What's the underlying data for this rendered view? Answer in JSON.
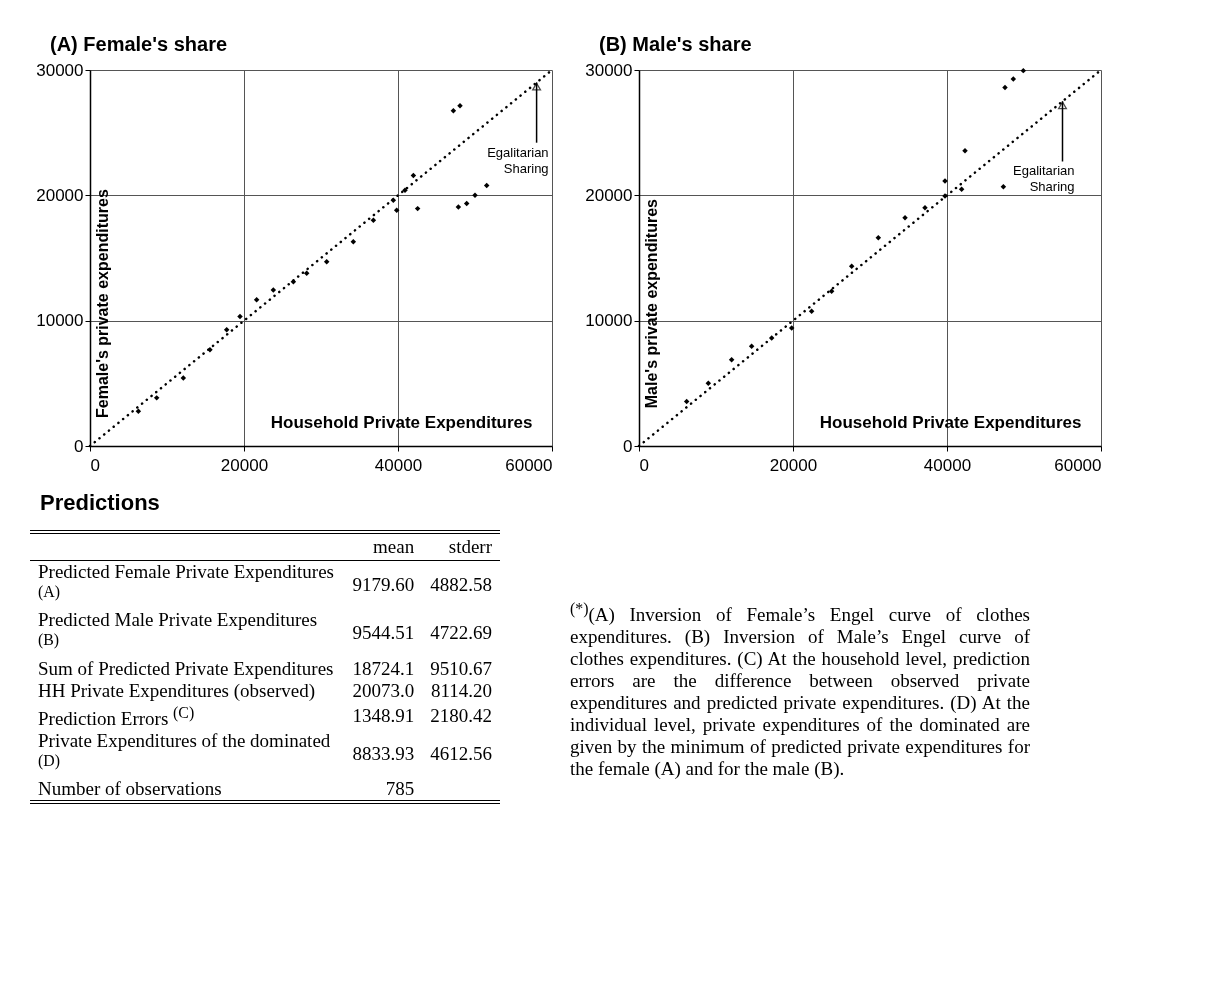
{
  "chart_data": [
    {
      "type": "scatter",
      "title": "(A) Female's share",
      "xlabel": "Household Private Expenditures",
      "ylabel": "Female's private expenditures",
      "xlim": [
        0,
        60000
      ],
      "ylim": [
        0,
        30000
      ],
      "xticks": [
        0,
        20000,
        40000,
        60000
      ],
      "yticks": [
        0,
        10000,
        20000,
        30000
      ],
      "grid": true,
      "series": [
        {
          "type": "scatter",
          "color": "#000000",
          "marker": "diamond",
          "x": [
            6280,
            8660,
            12120,
            15580,
            17750,
            19480,
            21640,
            23810,
            26410,
            28140,
            30740,
            34200,
            36800,
            39390,
            40910,
            42000,
            39830,
            42550,
            47190,
            48050,
            47840,
            48920,
            50000,
            51520
          ],
          "values": [
            2780,
            3840,
            5430,
            7680,
            9270,
            10330,
            11660,
            12450,
            13110,
            13780,
            14700,
            16290,
            18010,
            19600,
            20400,
            21590,
            18810,
            18940,
            26750,
            27150,
            19070,
            19340,
            20000,
            20790
          ]
        },
        {
          "type": "line",
          "color": "#000000",
          "line_style": "dotted",
          "x": [
            0,
            60000
          ],
          "values": [
            0,
            30000
          ]
        }
      ],
      "annotations": [
        {
          "text": "Egalitarian Sharing",
          "x": 58000,
          "y": 29000
        }
      ]
    },
    {
      "type": "scatter",
      "title": "(B) Male's share",
      "xlabel": "Household Private Expenditures",
      "ylabel": "Male's private expenditures",
      "xlim": [
        0,
        60000
      ],
      "ylim": [
        0,
        30000
      ],
      "xticks": [
        0,
        20000,
        40000,
        60000
      ],
      "yticks": [
        0,
        10000,
        20000,
        30000
      ],
      "grid": true,
      "series": [
        {
          "type": "scatter",
          "color": "#000000",
          "marker": "diamond",
          "x": [
            6190,
            9000,
            12030,
            14630,
            17230,
            19830,
            22420,
            25020,
            27620,
            31080,
            34550,
            37140,
            39740,
            41900,
            39740,
            42340,
            47320,
            47530,
            48610,
            49910
          ],
          "values": [
            3550,
            5010,
            6880,
            7950,
            8610,
            9410,
            10750,
            12350,
            14350,
            16610,
            18210,
            19010,
            19950,
            20480,
            21150,
            23550,
            20690,
            28610,
            29280,
            29950
          ]
        },
        {
          "type": "line",
          "color": "#000000",
          "line_style": "dotted",
          "x": [
            0,
            60000
          ],
          "values": [
            0,
            30000
          ]
        }
      ],
      "annotations": [
        {
          "text": "Egalitarian Sharing",
          "x": 55000,
          "y": 27500
        }
      ]
    },
    {
      "type": "other",
      "title": "Predictions",
      "categories": [
        "Predicted Female Private Expenditures $^{(A)}$",
        "Predicted Male Private Expenditures $^{(B)}$",
        "Sum of Predicted Private Expenditures",
        "HH Private Expenditures (observed)",
        "Prediction Errors $^{(C)}$",
        "Private Expenditures of the dominated $^{(D)}$",
        "Number of observations"
      ],
      "series": [
        {
          "name": "mean",
          "values": [
            9179.6,
            9544.51,
            18724.1,
            20073.0,
            1348.91,
            8833.93,
            785
          ],
          "value_labels": [
            "9179.60",
            "9544.51",
            "18724.1",
            "20073.0",
            "1348.91",
            "8833.93",
            "785"
          ]
        },
        {
          "name": "stderr",
          "values": [
            4882.58,
            4722.69,
            9510.67,
            8114.2,
            2180.42,
            4612.56,
            null
          ],
          "value_labels": [
            "4882.58",
            "4722.69",
            "9510.67",
            "8114.20",
            "2180.42",
            "4612.56",
            null
          ]
        }
      ],
      "annotations": [
        "$^{(*)}$(A) Inversion of Female’s Engel curve of clothes expenditures. (B) Inversion of Male’s Engel curve of clothes expenditures.  (C) At the household level, prediction errors are the difference between observed private expenditures and predicted private expenditures. (D) At the individual level, private expenditures of the dominated are given by the minimum of predicted private expenditures for the female (A) and for the male (B)."
      ]
    }
  ]
}
